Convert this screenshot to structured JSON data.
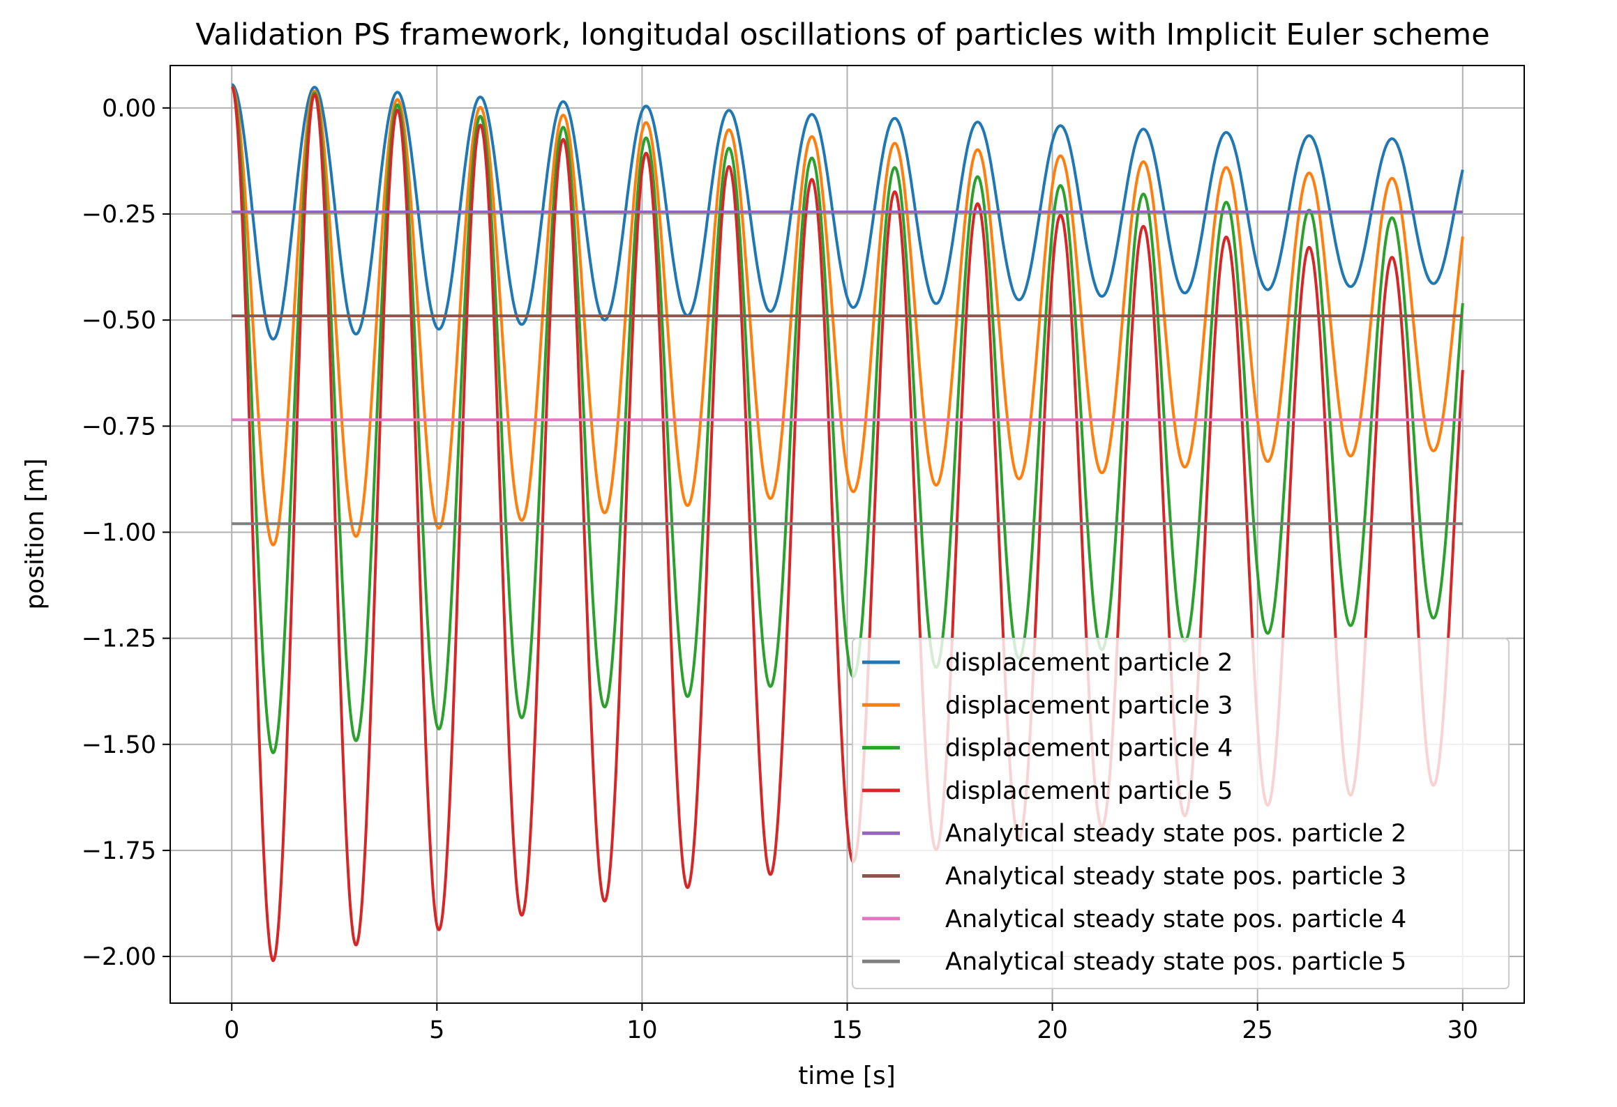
{
  "chart_data": {
    "type": "line",
    "title": "Validation PS framework, longitudal oscillations of particles with Implicit Euler scheme",
    "xlabel": "time [s]",
    "ylabel": "position [m]",
    "xlim": [
      -1.5,
      31.5
    ],
    "ylim": [
      -2.11,
      0.1
    ],
    "xticks": [
      0,
      5,
      10,
      15,
      20,
      25,
      30
    ],
    "xtick_labels": [
      "0",
      "5",
      "10",
      "15",
      "20",
      "25",
      "30"
    ],
    "yticks": [
      0,
      -0.25,
      -0.5,
      -0.75,
      -1.0,
      -1.25,
      -1.5,
      -1.75,
      -2.0
    ],
    "ytick_labels": [
      "0.00",
      "−0.25",
      "−0.50",
      "−0.75",
      "−1.00",
      "−1.25",
      "−1.50",
      "−1.75",
      "−2.00"
    ],
    "grid": true,
    "legend_position": "lower-right",
    "time_range": [
      0,
      30
    ],
    "period": 2.02,
    "series": [
      {
        "name": "displacement particle 2",
        "color": "#1f77b4",
        "kind": "oscillation",
        "steady": -0.245,
        "first_min": -0.545,
        "final_amplitude": 0.17
      },
      {
        "name": "displacement particle 3",
        "color": "#ff7f0e",
        "kind": "oscillation",
        "steady": -0.49,
        "first_min": -1.03,
        "final_amplitude": 0.32
      },
      {
        "name": "displacement particle 4",
        "color": "#2ca02c",
        "kind": "oscillation",
        "steady": -0.735,
        "first_min": -1.52,
        "final_amplitude": 0.47
      },
      {
        "name": "displacement particle 5",
        "color": "#d62728",
        "kind": "oscillation",
        "steady": -0.98,
        "first_min": -2.01,
        "final_amplitude": 0.62
      },
      {
        "name": "Analytical steady state pos. particle 2",
        "color": "#9467bd",
        "kind": "constant",
        "value": -0.245
      },
      {
        "name": "Analytical steady state pos. particle 3",
        "color": "#8c564b",
        "kind": "constant",
        "value": -0.49
      },
      {
        "name": "Analytical steady state pos. particle 4",
        "color": "#e377c2",
        "kind": "constant",
        "value": -0.735
      },
      {
        "name": "Analytical steady state pos. particle 5",
        "color": "#7f7f7f",
        "kind": "constant",
        "value": -0.98
      }
    ]
  }
}
